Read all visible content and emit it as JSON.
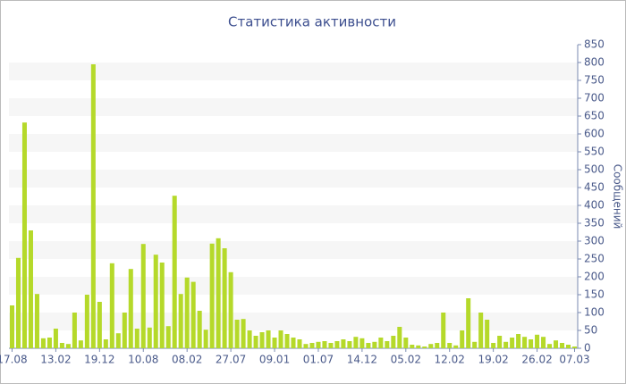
{
  "chart_data": {
    "type": "bar",
    "title": "Статистика активности",
    "y_label": "Сообщений",
    "categories": [
      "17.08",
      null,
      null,
      null,
      null,
      null,
      null,
      "13.02",
      null,
      null,
      null,
      null,
      null,
      null,
      "19.12",
      null,
      null,
      null,
      null,
      null,
      null,
      "10.08",
      null,
      null,
      null,
      null,
      null,
      null,
      "08.02",
      null,
      null,
      null,
      null,
      null,
      null,
      "27.07",
      null,
      null,
      null,
      null,
      null,
      null,
      "09.01",
      null,
      null,
      null,
      null,
      null,
      null,
      "01.07",
      null,
      null,
      null,
      null,
      null,
      null,
      "14.12",
      null,
      null,
      null,
      null,
      null,
      null,
      "05.02",
      null,
      null,
      null,
      null,
      null,
      null,
      "12.02",
      null,
      null,
      null,
      null,
      null,
      null,
      "19.02",
      null,
      null,
      null,
      null,
      null,
      null,
      "26.02",
      null,
      null,
      null,
      null,
      null,
      "07.03"
    ],
    "values": [
      120,
      253,
      632,
      330,
      152,
      28,
      30,
      55,
      15,
      12,
      100,
      22,
      150,
      795,
      130,
      25,
      238,
      42,
      100,
      222,
      55,
      292,
      58,
      262,
      240,
      62,
      427,
      152,
      198,
      186,
      105,
      52,
      293,
      308,
      280,
      213,
      80,
      82,
      50,
      35,
      45,
      50,
      30,
      50,
      40,
      30,
      25,
      12,
      15,
      18,
      20,
      15,
      20,
      25,
      20,
      32,
      28,
      15,
      18,
      30,
      20,
      35,
      60,
      30,
      10,
      8,
      5,
      12,
      15,
      100,
      15,
      8,
      50,
      140,
      18,
      100,
      80,
      15,
      35,
      18,
      30,
      40,
      32,
      25,
      38,
      32,
      12,
      22,
      15,
      10,
      5
    ],
    "color": "#b5d92a",
    "ylim": [
      0,
      850
    ],
    "yticks": [
      0,
      50,
      100,
      150,
      200,
      250,
      300,
      350,
      400,
      450,
      500,
      550,
      600,
      650,
      700,
      750,
      800,
      850
    ],
    "grid": true
  }
}
